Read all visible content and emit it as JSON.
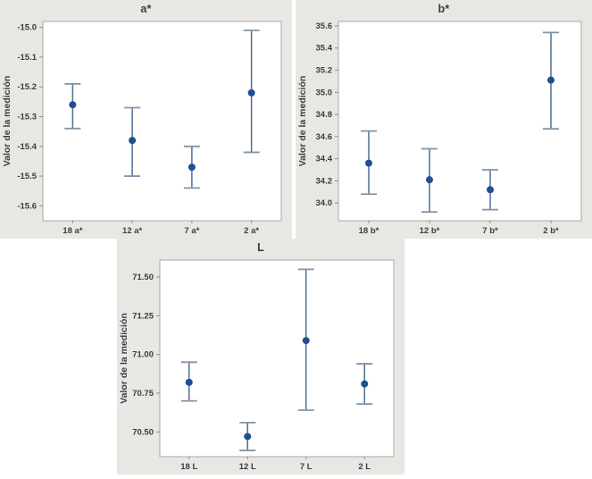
{
  "colors": {
    "panel_bg": "#e8e7e4",
    "plot_bg": "#ffffff",
    "plot_border": "#a9a9a9",
    "axis_tick": "#8c8c8c",
    "text": "#3c3c3c",
    "interval_line": "#4f6f96",
    "interval_cap": "#8494a2",
    "marker": "#1d4f91"
  },
  "chart_data": [
    {
      "type": "scatter",
      "subtype": "interval-plot",
      "title": "a*",
      "xlabel": "",
      "ylabel": "Valor de la medición",
      "categories": [
        "18 a*",
        "12 a*",
        "7 a*",
        "2 a*"
      ],
      "ytick_labels": [
        "-15.0",
        "-15.1",
        "-15.2",
        "-15.3",
        "-15.4",
        "-15.5",
        "-15.6"
      ],
      "ylim": [
        -15.65,
        -14.98
      ],
      "grid": false,
      "points": [
        {
          "mean": -15.26,
          "lo": -15.34,
          "hi": -15.19
        },
        {
          "mean": -15.38,
          "lo": -15.5,
          "hi": -15.27
        },
        {
          "mean": -15.47,
          "lo": -15.54,
          "hi": -15.4
        },
        {
          "mean": -15.22,
          "lo": -15.42,
          "hi": -15.01
        }
      ]
    },
    {
      "type": "scatter",
      "subtype": "interval-plot",
      "title": "b*",
      "xlabel": "",
      "ylabel": "Valor de la medición",
      "categories": [
        "18 b*",
        "12 b*",
        "7 b*",
        "2 b*"
      ],
      "ytick_labels": [
        "35.6",
        "35.4",
        "35.2",
        "35.0",
        "34.8",
        "34.6",
        "34.4",
        "34.2",
        "34.0"
      ],
      "ylim": [
        33.84,
        35.64
      ],
      "grid": false,
      "points": [
        {
          "mean": 34.36,
          "lo": 34.08,
          "hi": 34.65
        },
        {
          "mean": 34.21,
          "lo": 33.92,
          "hi": 34.49
        },
        {
          "mean": 34.12,
          "lo": 33.94,
          "hi": 34.3
        },
        {
          "mean": 35.11,
          "lo": 34.67,
          "hi": 35.54
        }
      ]
    },
    {
      "type": "scatter",
      "subtype": "interval-plot",
      "title": "L",
      "xlabel": "",
      "ylabel": "Valor de la medición",
      "categories": [
        "18 L",
        "12 L",
        "7 L",
        "2 L"
      ],
      "ytick_labels": [
        "71.50",
        "71.25",
        "71.00",
        "70.75",
        "70.50"
      ],
      "ylim": [
        70.34,
        71.61
      ],
      "grid": false,
      "points": [
        {
          "mean": 70.82,
          "lo": 70.7,
          "hi": 70.95
        },
        {
          "mean": 70.47,
          "lo": 70.38,
          "hi": 70.56
        },
        {
          "mean": 71.09,
          "lo": 70.64,
          "hi": 71.55
        },
        {
          "mean": 70.81,
          "lo": 70.68,
          "hi": 70.94
        }
      ]
    }
  ]
}
